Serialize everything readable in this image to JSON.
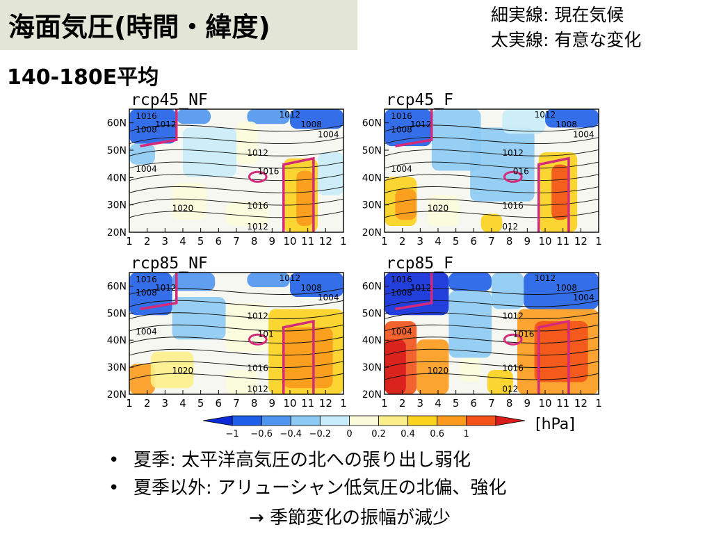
{
  "header": {
    "title": "海面気圧(時間・緯度)",
    "subtitle": "140-180E平均",
    "legend_note": [
      "細実線:  現在気候",
      "太実線:  有意な変化"
    ]
  },
  "colors": {
    "title_bg": "#e3e6d6",
    "significance_contour": "#d42a7a",
    "background": "#f7f7f2"
  },
  "chart_data": [
    {
      "type": "heatmap",
      "title": "rcp45_NF",
      "x_ticks": [
        "1",
        "2",
        "3",
        "4",
        "5",
        "6",
        "7",
        "8",
        "9",
        "10",
        "11",
        "12",
        "1"
      ],
      "y_ticks": [
        "20N",
        "30N",
        "40N",
        "50N",
        "60N"
      ],
      "contour_labels": [
        "1016",
        "1012",
        "1012",
        "1008",
        "1004",
        "1008",
        "1012",
        "1016",
        "1004",
        "1020",
        "1016",
        "1012"
      ]
    },
    {
      "type": "heatmap",
      "title": "rcp45_F",
      "x_ticks": [
        "1",
        "2",
        "3",
        "4",
        "5",
        "6",
        "7",
        "8",
        "9",
        "10",
        "11",
        "12",
        "1"
      ],
      "y_ticks": [
        "20N",
        "30N",
        "40N",
        "50N",
        "60N"
      ],
      "contour_labels": [
        "1016",
        "1012",
        "1012",
        "1008",
        "1004",
        "1008",
        "1012",
        "016",
        "1004",
        "1020",
        "1016",
        "012"
      ]
    },
    {
      "type": "heatmap",
      "title": "rcp85_NF",
      "x_ticks": [
        "1",
        "2",
        "3",
        "4",
        "5",
        "6",
        "7",
        "8",
        "9",
        "10",
        "11",
        "12",
        "1"
      ],
      "y_ticks": [
        "20N",
        "30N",
        "40N",
        "50N",
        "60N"
      ],
      "contour_labels": [
        "1016",
        "1012",
        "1012",
        "1008",
        "1004",
        "1008",
        "1012",
        "101",
        "1004",
        "1020",
        "1016",
        "1012"
      ]
    },
    {
      "type": "heatmap",
      "title": "rcp85_F",
      "x_ticks": [
        "1",
        "2",
        "3",
        "4",
        "5",
        "6",
        "7",
        "8",
        "9",
        "10",
        "11",
        "12",
        "1"
      ],
      "y_ticks": [
        "20N",
        "30N",
        "40N",
        "50N",
        "60N"
      ],
      "contour_labels": [
        "1016",
        "1012",
        "1012",
        "1008",
        "1004",
        "1008",
        "1012",
        "1016",
        "1004",
        "1020",
        "1016",
        "012"
      ]
    }
  ],
  "colorbar": {
    "ticks": [
      "−1",
      "−0.6",
      "−0.4",
      "−0.2",
      "0",
      "0.2",
      "0.4",
      "0.6",
      "1"
    ],
    "unit": "[hPa]",
    "colors": [
      "#0a2ad8",
      "#1f5ee8",
      "#4f94ee",
      "#8ccaf4",
      "#c8ecfa",
      "#fbfbdc",
      "#fbee88",
      "#fbd21e",
      "#fb9a1c",
      "#f2521a",
      "#d81c1c"
    ]
  },
  "bullets": [
    "夏季:  太平洋高気圧の北への張り出し弱化",
    "夏季以外:  アリューシャン低気圧の北偏、強化"
  ],
  "arrow_line": "→  季節変化の振幅が減少",
  "bullet_symbol": "•"
}
